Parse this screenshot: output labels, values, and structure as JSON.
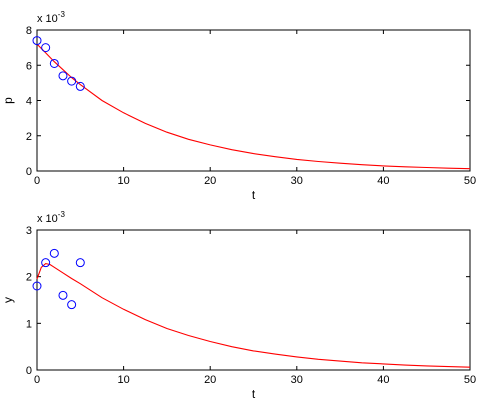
{
  "chart_data": [
    {
      "type": "line",
      "multiplier_label": "x 10",
      "multiplier_exponent": "-3",
      "xlabel": "t",
      "ylabel": "p",
      "xlim": [
        0,
        50
      ],
      "ylim": [
        0,
        8
      ],
      "xticks": [
        "0",
        "10",
        "20",
        "30",
        "40",
        "50"
      ],
      "yticks": [
        "0",
        "2",
        "4",
        "6",
        "8"
      ],
      "grid": false,
      "scatter": {
        "color": "#0000ff",
        "x": [
          0,
          1,
          2,
          3,
          4,
          5
        ],
        "y": [
          7.4,
          7.0,
          6.1,
          5.4,
          5.1,
          4.8
        ]
      },
      "line": {
        "color": "#ff0000",
        "x": [
          0,
          1,
          2,
          3,
          4,
          5,
          7.5,
          10,
          12.5,
          15,
          17.5,
          20,
          22.5,
          25,
          27.5,
          30,
          32.5,
          35,
          37.5,
          40,
          42.5,
          45,
          47.5,
          50
        ],
        "y": [
          7.2,
          6.7,
          6.2,
          5.75,
          5.3,
          4.9,
          4.0,
          3.3,
          2.7,
          2.2,
          1.8,
          1.48,
          1.21,
          0.99,
          0.81,
          0.66,
          0.54,
          0.44,
          0.36,
          0.29,
          0.24,
          0.2,
          0.16,
          0.13
        ]
      }
    },
    {
      "type": "line",
      "multiplier_label": "x 10",
      "multiplier_exponent": "-3",
      "xlabel": "t",
      "ylabel": "y",
      "xlim": [
        0,
        50
      ],
      "ylim": [
        0,
        3
      ],
      "xticks": [
        "0",
        "10",
        "20",
        "30",
        "40",
        "50"
      ],
      "yticks": [
        "0",
        "1",
        "2",
        "3"
      ],
      "grid": false,
      "scatter": {
        "color": "#0000ff",
        "x": [
          0,
          1,
          2,
          3,
          4,
          5
        ],
        "y": [
          1.8,
          2.3,
          2.5,
          1.6,
          1.4,
          2.3
        ]
      },
      "line": {
        "color": "#ff0000",
        "x": [
          0,
          0.5,
          1,
          1.5,
          2,
          3,
          4,
          5,
          7.5,
          10,
          12.5,
          15,
          17.5,
          20,
          22.5,
          25,
          27.5,
          30,
          32.5,
          35,
          37.5,
          40,
          42.5,
          45,
          47.5,
          50
        ],
        "y": [
          1.95,
          2.2,
          2.28,
          2.26,
          2.2,
          2.08,
          1.96,
          1.85,
          1.55,
          1.3,
          1.08,
          0.89,
          0.74,
          0.61,
          0.5,
          0.41,
          0.34,
          0.28,
          0.23,
          0.19,
          0.155,
          0.13,
          0.105,
          0.087,
          0.072,
          0.06
        ]
      }
    }
  ]
}
